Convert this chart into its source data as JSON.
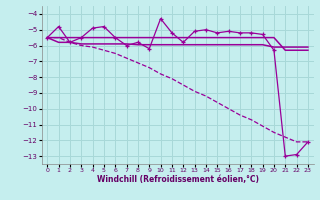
{
  "xlabel": "Windchill (Refroidissement éolien,°C)",
  "background_color": "#c5eeee",
  "grid_color": "#a8d8d8",
  "line_color": "#990099",
  "xlim": [
    -0.5,
    23.5
  ],
  "ylim": [
    -13.5,
    -3.5
  ],
  "xticks": [
    0,
    1,
    2,
    3,
    4,
    5,
    6,
    7,
    8,
    9,
    10,
    11,
    12,
    13,
    14,
    15,
    16,
    17,
    18,
    19,
    20,
    21,
    22,
    23
  ],
  "yticks": [
    -13,
    -12,
    -11,
    -10,
    -9,
    -8,
    -7,
    -6,
    -5,
    -4
  ],
  "hours": [
    0,
    1,
    2,
    3,
    4,
    5,
    6,
    7,
    8,
    9,
    10,
    11,
    12,
    13,
    14,
    15,
    16,
    17,
    18,
    19,
    20,
    21,
    22,
    23
  ],
  "series1": [
    -5.5,
    -4.8,
    -5.8,
    -5.5,
    -4.9,
    -4.8,
    -5.5,
    -6.0,
    -5.8,
    -6.2,
    -4.3,
    -5.2,
    -5.8,
    -5.1,
    -5.0,
    -5.2,
    -5.1,
    -5.2,
    -5.2,
    -5.3,
    -6.3,
    -13.0,
    -12.9,
    -12.1
  ],
  "series2": [
    -5.5,
    -5.8,
    -5.8,
    -5.9,
    -5.9,
    -5.9,
    -5.9,
    -5.9,
    -5.95,
    -5.95,
    -5.95,
    -5.95,
    -5.95,
    -5.95,
    -5.95,
    -5.95,
    -5.95,
    -5.95,
    -5.95,
    -5.95,
    -6.1,
    -6.1,
    -6.1,
    -6.1
  ],
  "series3": [
    -5.5,
    -5.5,
    -5.5,
    -5.5,
    -5.5,
    -5.5,
    -5.5,
    -5.5,
    -5.5,
    -5.5,
    -5.5,
    -5.5,
    -5.5,
    -5.5,
    -5.5,
    -5.5,
    -5.5,
    -5.5,
    -5.5,
    -5.5,
    -5.5,
    -6.3,
    -6.3,
    -6.3
  ],
  "series4_x": [
    0,
    1,
    2,
    3,
    4,
    5,
    6,
    7,
    8,
    9,
    10,
    11,
    12,
    13,
    14,
    15,
    16,
    17,
    18,
    19,
    20,
    21,
    22,
    23
  ],
  "series4": [
    -5.5,
    -5.5,
    -5.8,
    -6.0,
    -6.1,
    -6.3,
    -6.5,
    -6.8,
    -7.1,
    -7.4,
    -7.8,
    -8.1,
    -8.5,
    -8.9,
    -9.2,
    -9.6,
    -10.0,
    -10.4,
    -10.7,
    -11.1,
    -11.5,
    -11.8,
    -12.1,
    -12.1
  ]
}
